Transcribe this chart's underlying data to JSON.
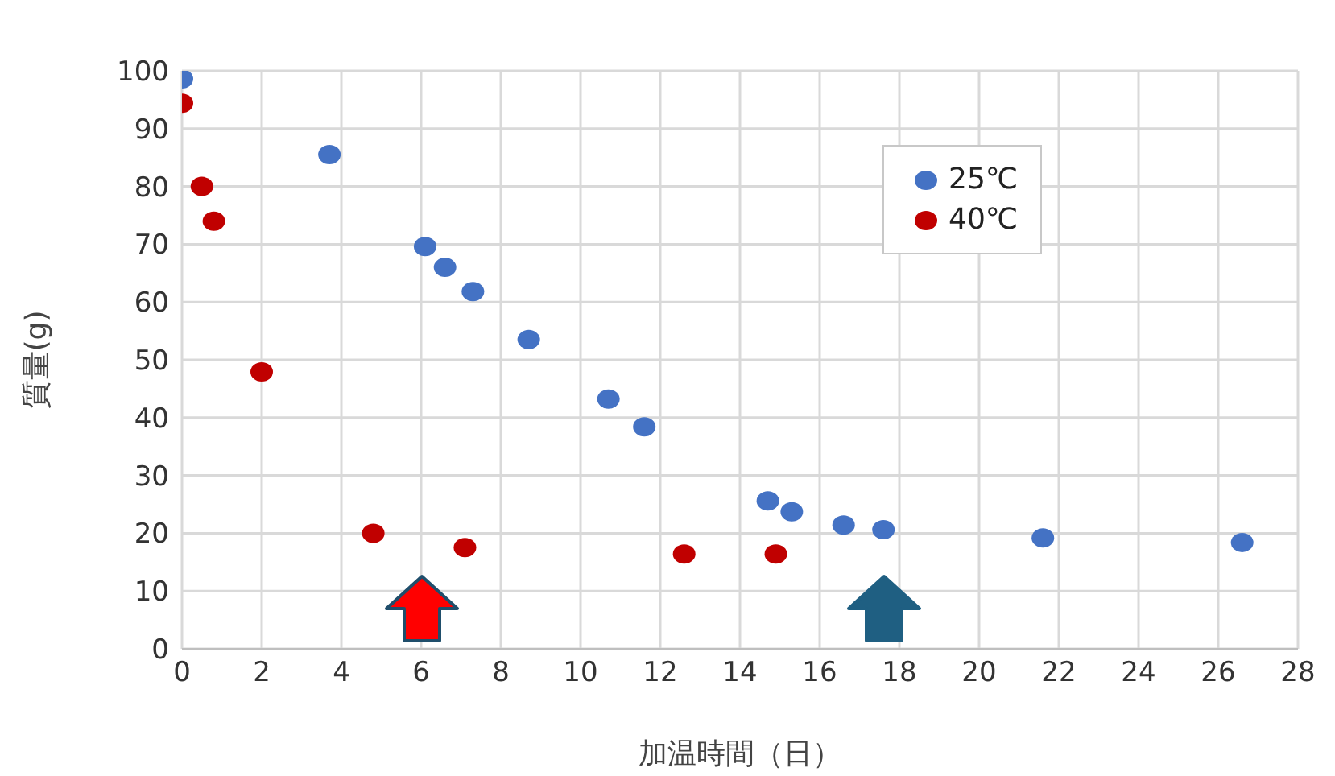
{
  "chart_data": {
    "type": "scatter",
    "xlabel": "加温時間（日）",
    "ylabel": "質量(g)",
    "xlim": [
      0,
      28
    ],
    "xticks": [
      0,
      2,
      4,
      6,
      8,
      10,
      12,
      14,
      16,
      18,
      20,
      22,
      24,
      26,
      28
    ],
    "ylim": [
      0,
      100
    ],
    "yticks": [
      0,
      10,
      20,
      30,
      40,
      50,
      60,
      70,
      80,
      90,
      100
    ],
    "grid": true,
    "legend": "top right",
    "marker": "circle",
    "series": [
      {
        "name": "25℃",
        "color": "#4472c4",
        "x": [
          0,
          3.7,
          6.1,
          6.6,
          7.3,
          8.7,
          10.7,
          11.6,
          14.7,
          15.3,
          16.6,
          17.6,
          21.6,
          26.6
        ],
        "values": [
          98.6,
          85.5,
          69.6,
          66,
          61.8,
          53.5,
          43.2,
          38.4,
          25.6,
          23.7,
          21.4,
          20.6,
          19.2,
          18.4
        ]
      },
      {
        "name": "40℃",
        "color": "#c00000",
        "x": [
          0,
          0.5,
          0.8,
          2.0,
          4.8,
          7.1,
          12.6,
          14.9
        ],
        "values": [
          94.4,
          80,
          74,
          47.9,
          20,
          17.5,
          16.4,
          16.4
        ]
      }
    ]
  }
}
